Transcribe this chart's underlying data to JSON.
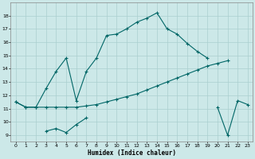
{
  "xlabel": "Humidex (Indice chaleur)",
  "ylabel": "",
  "bg_color": "#cce8e8",
  "grid_color": "#aacfcf",
  "line_color": "#006666",
  "xlim": [
    -0.5,
    23.5
  ],
  "ylim": [
    8.5,
    19.0
  ],
  "xticks": [
    0,
    1,
    2,
    3,
    4,
    5,
    6,
    7,
    8,
    9,
    10,
    11,
    12,
    13,
    14,
    15,
    16,
    17,
    18,
    19,
    20,
    21,
    22,
    23
  ],
  "yticks": [
    9,
    10,
    11,
    12,
    13,
    14,
    15,
    16,
    17,
    18
  ],
  "curve1_x": [
    0,
    1,
    2,
    3,
    4,
    5,
    6,
    7,
    8,
    9,
    10,
    11,
    12,
    13,
    14,
    15,
    16,
    17,
    18,
    19
  ],
  "curve1_y": [
    11.5,
    11.1,
    11.1,
    12.5,
    13.8,
    14.8,
    11.6,
    13.8,
    14.8,
    16.5,
    16.6,
    17.0,
    17.5,
    17.8,
    18.2,
    17.0,
    16.6,
    15.9,
    15.3,
    14.8
  ],
  "curve2_x": [
    0,
    1,
    2,
    3,
    4,
    5,
    6,
    7,
    8,
    9,
    10,
    11,
    12,
    13,
    14,
    15,
    16,
    17,
    18,
    19,
    20,
    21
  ],
  "curve2_y": [
    11.5,
    11.1,
    11.1,
    11.1,
    11.1,
    11.1,
    11.1,
    11.2,
    11.3,
    11.5,
    11.7,
    11.9,
    12.1,
    12.4,
    12.7,
    13.0,
    13.3,
    13.6,
    13.9,
    14.2,
    14.4,
    14.6
  ],
  "curve3_x": [
    3,
    4,
    5,
    6,
    7,
    20,
    21,
    22,
    23
  ],
  "curve3_y": [
    9.3,
    9.5,
    9.2,
    9.8,
    10.3,
    11.1,
    9.0,
    11.6,
    11.3
  ]
}
